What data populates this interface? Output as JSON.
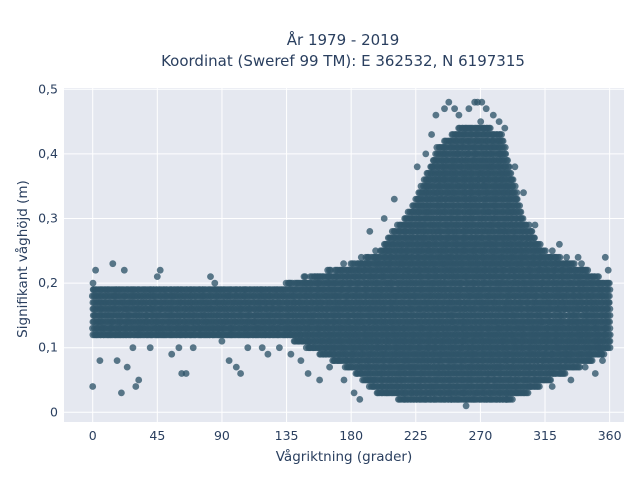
{
  "chart_data": {
    "type": "scatter",
    "title_lines": [
      "År 1979 - 2019",
      "Koordinat (Sweref 99 TM): E 362532, N 6197315"
    ],
    "xlabel": "Vågriktning (grader)",
    "ylabel": "Signifikant våghöjd (m)",
    "xlim": [
      -20,
      370
    ],
    "ylim": [
      -0.015,
      0.502
    ],
    "x_ticks": [
      0,
      45,
      90,
      135,
      180,
      225,
      270,
      315,
      360
    ],
    "x_tick_labels": [
      "0",
      "45",
      "90",
      "135",
      "180",
      "225",
      "270",
      "315",
      "360"
    ],
    "y_ticks": [
      0,
      0.1,
      0.2,
      0.3,
      0.4,
      0.5
    ],
    "y_tick_labels": [
      "0",
      "0,1",
      "0,2",
      "0,3",
      "0,4",
      "0,5"
    ],
    "grid": true,
    "marker_color": "#2f5569",
    "background_color": "#e5e8f0",
    "band_profile": [
      {
        "x": 0,
        "low": 0.12,
        "high": 0.2
      },
      {
        "x": 45,
        "low": 0.12,
        "high": 0.195
      },
      {
        "x": 90,
        "low": 0.12,
        "high": 0.19
      },
      {
        "x": 135,
        "low": 0.12,
        "high": 0.2
      },
      {
        "x": 180,
        "low": 0.07,
        "high": 0.23
      },
      {
        "x": 200,
        "low": 0.03,
        "high": 0.25
      },
      {
        "x": 225,
        "low": 0.02,
        "high": 0.33
      },
      {
        "x": 240,
        "low": 0.02,
        "high": 0.41
      },
      {
        "x": 255,
        "low": 0.02,
        "high": 0.44
      },
      {
        "x": 270,
        "low": 0.02,
        "high": 0.45
      },
      {
        "x": 285,
        "low": 0.02,
        "high": 0.43
      },
      {
        "x": 300,
        "low": 0.03,
        "high": 0.3
      },
      {
        "x": 315,
        "low": 0.05,
        "high": 0.25
      },
      {
        "x": 345,
        "low": 0.08,
        "high": 0.22
      },
      {
        "x": 360,
        "low": 0.1,
        "high": 0.2
      }
    ],
    "outliers": [
      {
        "x": 0,
        "y": 0.04
      },
      {
        "x": 2,
        "y": 0.22
      },
      {
        "x": 5,
        "y": 0.08
      },
      {
        "x": 14,
        "y": 0.23
      },
      {
        "x": 17,
        "y": 0.08
      },
      {
        "x": 20,
        "y": 0.03
      },
      {
        "x": 22,
        "y": 0.22
      },
      {
        "x": 24,
        "y": 0.07
      },
      {
        "x": 28,
        "y": 0.1
      },
      {
        "x": 30,
        "y": 0.04
      },
      {
        "x": 32,
        "y": 0.05
      },
      {
        "x": 40,
        "y": 0.1
      },
      {
        "x": 45,
        "y": 0.21
      },
      {
        "x": 47,
        "y": 0.22
      },
      {
        "x": 55,
        "y": 0.09
      },
      {
        "x": 60,
        "y": 0.1
      },
      {
        "x": 62,
        "y": 0.06
      },
      {
        "x": 65,
        "y": 0.06
      },
      {
        "x": 70,
        "y": 0.1
      },
      {
        "x": 82,
        "y": 0.21
      },
      {
        "x": 85,
        "y": 0.2
      },
      {
        "x": 90,
        "y": 0.11
      },
      {
        "x": 95,
        "y": 0.08
      },
      {
        "x": 100,
        "y": 0.07
      },
      {
        "x": 103,
        "y": 0.06
      },
      {
        "x": 108,
        "y": 0.1
      },
      {
        "x": 118,
        "y": 0.1
      },
      {
        "x": 122,
        "y": 0.09
      },
      {
        "x": 130,
        "y": 0.1
      },
      {
        "x": 138,
        "y": 0.09
      },
      {
        "x": 145,
        "y": 0.08
      },
      {
        "x": 150,
        "y": 0.06
      },
      {
        "x": 158,
        "y": 0.05
      },
      {
        "x": 165,
        "y": 0.07
      },
      {
        "x": 175,
        "y": 0.05
      },
      {
        "x": 182,
        "y": 0.03
      },
      {
        "x": 186,
        "y": 0.02
      },
      {
        "x": 193,
        "y": 0.28
      },
      {
        "x": 203,
        "y": 0.3
      },
      {
        "x": 210,
        "y": 0.33
      },
      {
        "x": 226,
        "y": 0.38
      },
      {
        "x": 232,
        "y": 0.4
      },
      {
        "x": 236,
        "y": 0.43
      },
      {
        "x": 239,
        "y": 0.46
      },
      {
        "x": 245,
        "y": 0.47
      },
      {
        "x": 248,
        "y": 0.48
      },
      {
        "x": 252,
        "y": 0.47
      },
      {
        "x": 255,
        "y": 0.46
      },
      {
        "x": 262,
        "y": 0.47
      },
      {
        "x": 266,
        "y": 0.48
      },
      {
        "x": 268,
        "y": 0.48
      },
      {
        "x": 271,
        "y": 0.48
      },
      {
        "x": 274,
        "y": 0.47
      },
      {
        "x": 279,
        "y": 0.46
      },
      {
        "x": 283,
        "y": 0.45
      },
      {
        "x": 287,
        "y": 0.44
      },
      {
        "x": 294,
        "y": 0.38
      },
      {
        "x": 300,
        "y": 0.34
      },
      {
        "x": 308,
        "y": 0.29
      },
      {
        "x": 260,
        "y": 0.01
      },
      {
        "x": 250,
        "y": 0.02
      },
      {
        "x": 288,
        "y": 0.02
      },
      {
        "x": 305,
        "y": 0.04
      },
      {
        "x": 320,
        "y": 0.04
      },
      {
        "x": 333,
        "y": 0.05
      },
      {
        "x": 343,
        "y": 0.07
      },
      {
        "x": 350,
        "y": 0.06
      },
      {
        "x": 355,
        "y": 0.08
      },
      {
        "x": 357,
        "y": 0.24
      },
      {
        "x": 359,
        "y": 0.22
      },
      {
        "x": 325,
        "y": 0.26
      },
      {
        "x": 338,
        "y": 0.24
      }
    ]
  }
}
